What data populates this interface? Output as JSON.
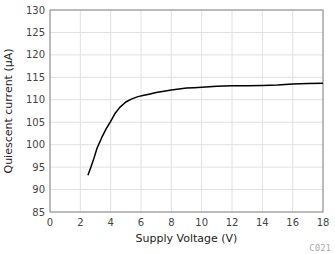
{
  "chart_data": {
    "type": "line",
    "xlabel": "Supply Voltage (V)",
    "ylabel": "Quiescent current (μA)",
    "x": [
      2.5,
      2.7,
      2.9,
      3.1,
      3.4,
      3.7,
      4.0,
      4.3,
      4.6,
      5.0,
      5.4,
      5.8,
      6.2,
      6.6,
      7.0,
      7.5,
      8.0,
      8.5,
      9.0,
      9.5,
      10.0,
      10.5,
      11.0,
      12.0,
      13.0,
      14.0,
      15.0,
      16.0,
      17.0,
      18.0
    ],
    "values": [
      93.2,
      95.0,
      97.0,
      99.2,
      101.5,
      103.5,
      105.2,
      107.0,
      108.3,
      109.5,
      110.2,
      110.7,
      111.0,
      111.3,
      111.6,
      111.9,
      112.2,
      112.4,
      112.6,
      112.7,
      112.8,
      112.9,
      113.0,
      113.1,
      113.1,
      113.2,
      113.3,
      113.5,
      113.6,
      113.7
    ],
    "color": "#000000",
    "xlim": [
      0,
      18
    ],
    "ylim": [
      85,
      130
    ],
    "xticks": [
      0,
      2,
      4,
      6,
      8,
      10,
      12,
      14,
      16,
      18
    ],
    "yticks": [
      85,
      90,
      95,
      100,
      105,
      110,
      115,
      120,
      125,
      130
    ],
    "grid": true,
    "annotations": [
      "C021"
    ]
  }
}
